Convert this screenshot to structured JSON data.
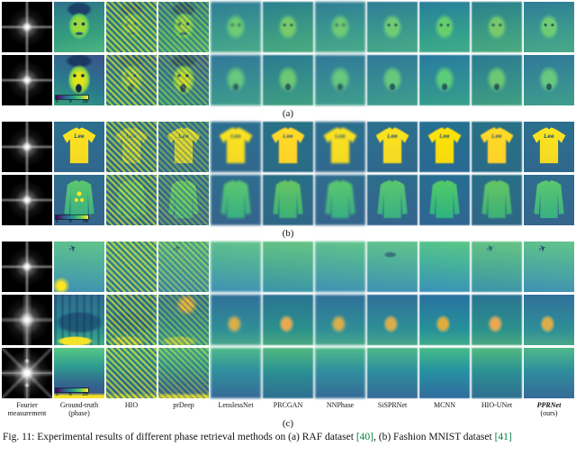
{
  "figure": {
    "columns": [
      "Fourier measurement",
      "Ground-truth (phase)",
      "HIO",
      "prDeep",
      "LenslessNet",
      "PRCGAN",
      "NNPhase",
      "SiSPRNet",
      "MCNN",
      "HIO-UNet",
      "PPRNet"
    ],
    "pprnet_suffix": "(ours)",
    "sublabels": {
      "a": "(a)",
      "b": "(b)",
      "c": "(c)"
    },
    "colorbar": {
      "t0": "0",
      "t1": "π",
      "t2": "2π"
    },
    "shirt_logo": "Lee",
    "colors": {
      "viridis_low": "#440154",
      "viridis_mid": "#21918c",
      "viridis_high": "#fde725",
      "fourier_bg": "#000000"
    }
  },
  "caption": {
    "part1": "Fig. 11: Experimental results of different phase retrieval methods on (a) RAF dataset ",
    "ref1": "[40]",
    "part2": ", (b) Fashion MNIST dataset ",
    "ref2": "[41]"
  }
}
